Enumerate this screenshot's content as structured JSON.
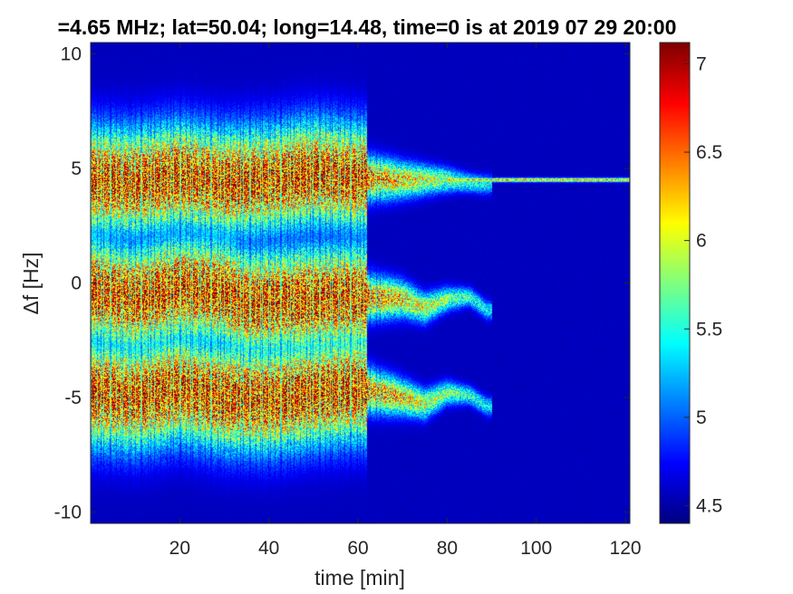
{
  "chart_data": {
    "type": "heatmap",
    "title": "=4.65 MHz;  lat=50.04; long=14.48, time=0 is at 2019 07 29 20:00",
    "xlabel": "time [min]",
    "ylabel": "Δf [Hz]",
    "xlim": [
      0,
      121
    ],
    "ylim": [
      -10.5,
      10.5
    ],
    "xticks": [
      20,
      40,
      60,
      80,
      100,
      120
    ],
    "yticks": [
      -10,
      -5,
      0,
      5,
      10
    ],
    "colorbar": {
      "ticks": [
        4.5,
        5,
        5.5,
        6,
        6.5,
        7
      ],
      "limits": [
        4.4,
        7.12
      ],
      "colormap": "jet"
    },
    "background_value": 4.55,
    "grid": false,
    "bands": [
      {
        "name": "upper",
        "ridge": [
          [
            0,
            4.5
          ],
          [
            10,
            4.4
          ],
          [
            20,
            4.7
          ],
          [
            30,
            4.4
          ],
          [
            40,
            4.5
          ],
          [
            50,
            4.8
          ],
          [
            60,
            4.6
          ],
          [
            70,
            4.5
          ],
          [
            80,
            4.5
          ],
          [
            88,
            4.3
          ]
        ],
        "end_min": 90,
        "narrow_line": {
          "start_min": 80,
          "end_min": 121,
          "df": 4.5
        }
      },
      {
        "name": "middle",
        "ridge": [
          [
            0,
            -0.3
          ],
          [
            10,
            -0.7
          ],
          [
            20,
            -0.2
          ],
          [
            30,
            -0.4
          ],
          [
            35,
            -0.9
          ],
          [
            40,
            -0.8
          ],
          [
            50,
            -0.7
          ],
          [
            60,
            -0.6
          ],
          [
            70,
            -0.7
          ],
          [
            75,
            -1.1
          ],
          [
            80,
            -0.7
          ],
          [
            85,
            -0.6
          ],
          [
            89,
            -1.2
          ]
        ],
        "end_min": 90
      },
      {
        "name": "lower",
        "ridge": [
          [
            0,
            -4.8
          ],
          [
            10,
            -5.0
          ],
          [
            20,
            -4.6
          ],
          [
            30,
            -5.0
          ],
          [
            40,
            -5.1
          ],
          [
            50,
            -4.8
          ],
          [
            60,
            -4.6
          ],
          [
            70,
            -5.0
          ],
          [
            75,
            -5.3
          ],
          [
            80,
            -4.8
          ],
          [
            85,
            -4.9
          ],
          [
            89,
            -5.4
          ]
        ],
        "end_min": 90
      }
    ]
  }
}
